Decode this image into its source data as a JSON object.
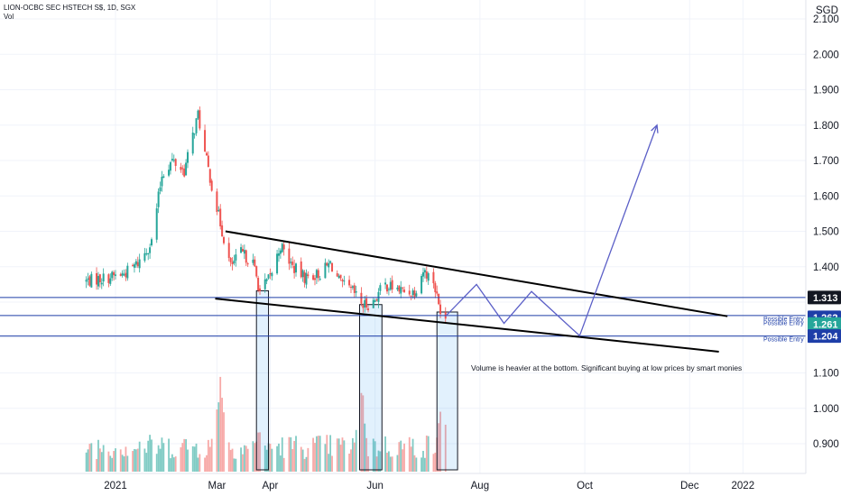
{
  "header": {
    "title": "LION-OCBC SEC HSTECH S$, 1D, SGX",
    "vol_label": "Vol"
  },
  "axis": {
    "currency": "SGD",
    "y_ticks": [
      "2.100",
      "2.000",
      "1.900",
      "1.800",
      "1.700",
      "1.600",
      "1.500",
      "1.400",
      "1.100",
      "1.000",
      "0.900"
    ],
    "x_ticks": [
      "2021",
      "Mar",
      "Apr",
      "Jun",
      "Aug",
      "Oct",
      "Dec",
      "2022"
    ]
  },
  "levels": [
    {
      "price": 1.313,
      "label": "1.313",
      "color": "#131722",
      "entry": ""
    },
    {
      "price": 1.262,
      "label": "1.262",
      "color": "#1e3ea8",
      "entry": "Possible Entry"
    },
    {
      "price": 1.261,
      "label": "1.261",
      "color": "#26a69a",
      "entry": "Possible Entry"
    },
    {
      "price": 1.204,
      "label": "1.204",
      "color": "#1e3ea8",
      "entry": "Possible Entry"
    }
  ],
  "annotation": "Volume is heavier at the bottom. Significant buying at low prices by smart monies",
  "colors": {
    "up": "#26a69a",
    "down": "#ef5350",
    "vol_up": "#80cbc4",
    "vol_down": "#f7a9a7",
    "level_line": "#1e3ea8",
    "forecast": "#5b5fc7"
  },
  "chart_data": {
    "type": "candlestick",
    "symbol": "LION-OCBC SEC HSTECH S$",
    "interval": "1D",
    "exchange": "SGX",
    "currency": "SGD",
    "ylim": [
      0.83,
      2.13
    ],
    "x_range": [
      "2020-12-10",
      "2022-02-05"
    ],
    "series": [
      {
        "date": "2020-12-15",
        "close": 1.36
      },
      {
        "date": "2020-12-28",
        "close": 1.37
      },
      {
        "date": "2021-01-06",
        "close": 1.38
      },
      {
        "date": "2021-01-14",
        "close": 1.41
      },
      {
        "date": "2021-01-22",
        "close": 1.47
      },
      {
        "date": "2021-01-28",
        "close": 1.66
      },
      {
        "date": "2021-02-03",
        "close": 1.7
      },
      {
        "date": "2021-02-10",
        "close": 1.67
      },
      {
        "date": "2021-02-18",
        "close": 1.83
      },
      {
        "date": "2021-02-22",
        "close": 1.72
      },
      {
        "date": "2021-02-26",
        "close": 1.63
      },
      {
        "date": "2021-03-04",
        "close": 1.5
      },
      {
        "date": "2021-03-09",
        "close": 1.4
      },
      {
        "date": "2021-03-15",
        "close": 1.44
      },
      {
        "date": "2021-03-22",
        "close": 1.41
      },
      {
        "date": "2021-03-26",
        "close": 1.33
      },
      {
        "date": "2021-04-01",
        "close": 1.37
      },
      {
        "date": "2021-04-07",
        "close": 1.46
      },
      {
        "date": "2021-04-14",
        "close": 1.4
      },
      {
        "date": "2021-04-21",
        "close": 1.37
      },
      {
        "date": "2021-04-30",
        "close": 1.38
      },
      {
        "date": "2021-05-06",
        "close": 1.41
      },
      {
        "date": "2021-05-12",
        "close": 1.35
      },
      {
        "date": "2021-05-19",
        "close": 1.33
      },
      {
        "date": "2021-05-25",
        "close": 1.29
      },
      {
        "date": "2021-05-31",
        "close": 1.3
      },
      {
        "date": "2021-06-06",
        "close": 1.35
      },
      {
        "date": "2021-06-12",
        "close": 1.34
      },
      {
        "date": "2021-06-18",
        "close": 1.33
      },
      {
        "date": "2021-06-24",
        "close": 1.33
      },
      {
        "date": "2021-06-29",
        "close": 1.39
      },
      {
        "date": "2021-07-05",
        "close": 1.36
      },
      {
        "date": "2021-07-08",
        "close": 1.29
      },
      {
        "date": "2021-07-12",
        "close": 1.26
      }
    ],
    "volume": [
      {
        "date": "2021-03-03",
        "value": 2.4
      },
      {
        "date": "2021-03-25",
        "value": 1.0
      },
      {
        "date": "2021-05-24",
        "value": 2.1
      },
      {
        "date": "2021-07-10",
        "value": 1.8
      }
    ],
    "horizontal_levels": [
      1.313,
      1.262,
      1.204
    ],
    "trendlines": [
      {
        "from": [
          "2021-03-06",
          1.5
        ],
        "to": [
          "2021-12-23",
          1.26
        ]
      },
      {
        "from": [
          "2021-02-28",
          1.31
        ],
        "to": [
          "2021-12-18",
          1.16
        ]
      }
    ],
    "forecast_path": [
      {
        "date": "2021-07-12",
        "value": 1.26
      },
      {
        "date": "2021-07-30",
        "value": 1.35
      },
      {
        "date": "2021-08-15",
        "value": 1.24
      },
      {
        "date": "2021-08-31",
        "value": 1.33
      },
      {
        "date": "2021-09-28",
        "value": 1.205
      },
      {
        "date": "2021-11-12",
        "value": 1.8
      }
    ]
  }
}
